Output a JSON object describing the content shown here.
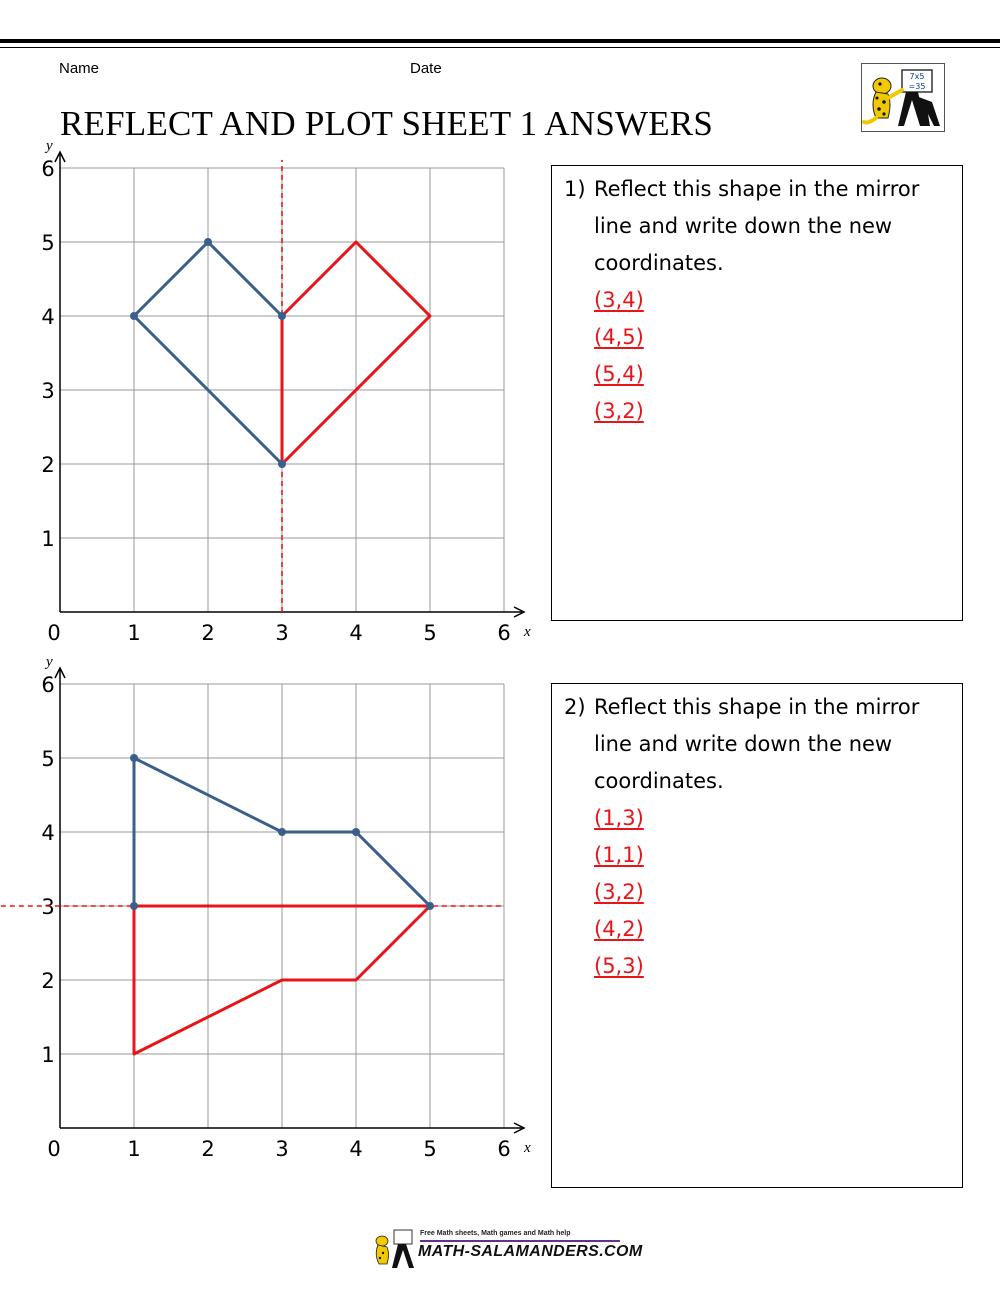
{
  "header": {
    "name_label": "Name",
    "date_label": "Date",
    "title": "REFLECT AND PLOT SHEET 1 ANSWERS"
  },
  "logo": {
    "icon": "salamander-logo-icon",
    "board_text": [
      "7x5",
      "=35"
    ]
  },
  "graphs": [
    {
      "x_label": "x",
      "y_label": "y",
      "x_ticks": [
        "0",
        "1",
        "2",
        "3",
        "4",
        "5",
        "6"
      ],
      "y_ticks": [
        "1",
        "2",
        "3",
        "4",
        "5",
        "6"
      ],
      "mirror": {
        "orientation": "vertical",
        "value": 3
      },
      "original_shape": [
        [
          1,
          4
        ],
        [
          2,
          5
        ],
        [
          3,
          4
        ],
        [
          3,
          2
        ]
      ],
      "reflected_shape": [
        [
          3,
          4
        ],
        [
          4,
          5
        ],
        [
          5,
          4
        ],
        [
          3,
          2
        ]
      ],
      "original_color": "#3a5f8c",
      "reflected_color": "#e8141a"
    },
    {
      "x_label": "x",
      "y_label": "y",
      "x_ticks": [
        "0",
        "1",
        "2",
        "3",
        "4",
        "5",
        "6"
      ],
      "y_ticks": [
        "1",
        "2",
        "3",
        "4",
        "5",
        "6"
      ],
      "mirror": {
        "orientation": "horizontal",
        "value": 3
      },
      "original_shape": [
        [
          1,
          3
        ],
        [
          1,
          5
        ],
        [
          3,
          4
        ],
        [
          4,
          4
        ],
        [
          5,
          3
        ]
      ],
      "reflected_shape": [
        [
          1,
          3
        ],
        [
          1,
          1
        ],
        [
          3,
          2
        ],
        [
          4,
          2
        ],
        [
          5,
          3
        ]
      ],
      "original_color": "#3a5f8c",
      "reflected_color": "#e8141a"
    }
  ],
  "questions": [
    {
      "number": "1)",
      "text": "Reflect this shape in the mirror line and write down the new coordinates.",
      "answers": [
        "(3,4)",
        "(4,5)",
        "(5,4)",
        "(3,2)"
      ]
    },
    {
      "number": "2)",
      "text": "Reflect this shape in the mirror line and write down the new coordinates.",
      "answers": [
        "(1,3)",
        "(1,1)",
        "(3,2)",
        "(4,2)",
        "(5,3)"
      ]
    }
  ],
  "footer": {
    "tagline": "Free Math sheets, Math games and Math help",
    "site": "MATH-SALAMANDERS.COM"
  }
}
